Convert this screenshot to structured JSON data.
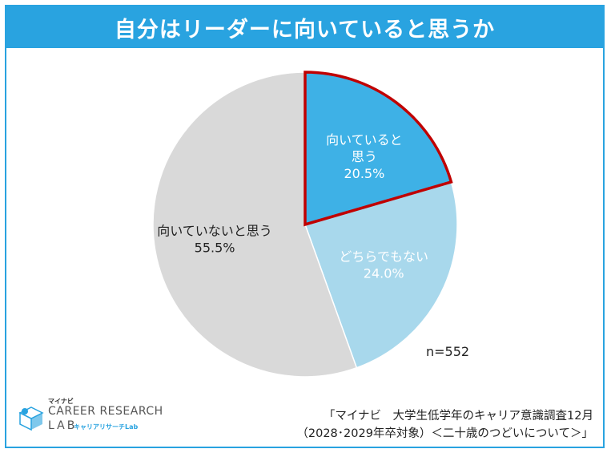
{
  "chart_data": {
    "type": "pie",
    "title": "自分はリーダーに向いていると思うか",
    "start": "12 o'clock, clockwise",
    "slices": [
      {
        "label": "向いていると思う",
        "label_lines": [
          "向いていると",
          "思う"
        ],
        "value": 20.5,
        "value_text": "20.5%",
        "color": "#3eb1e6",
        "highlight": true
      },
      {
        "label": "どちらでもない",
        "label_lines": [
          "どちらでもない"
        ],
        "value": 24.0,
        "value_text": "24.0%",
        "color": "#a8d8ec",
        "highlight": false
      },
      {
        "label": "向いていないと思う",
        "label_lines": [
          "向いていないと思う"
        ],
        "value": 55.5,
        "value_text": "55.5%",
        "color": "#d9d9d9",
        "highlight": false
      }
    ],
    "annotations": [
      "n=552"
    ]
  },
  "colors": {
    "accent": "#29a3e0",
    "highlight_border": "#c00000"
  },
  "footer": {
    "logo": {
      "small": "マイナビ",
      "main": "CAREER RESEARCH",
      "lab": "LAB",
      "sub": "キャリアリサーチLab"
    },
    "source_line1": "「マイナビ　大学生低学年のキャリア意識調査12月",
    "source_line2": "（2028･2029年卒対象）＜二十歳のつどいについて＞」"
  }
}
